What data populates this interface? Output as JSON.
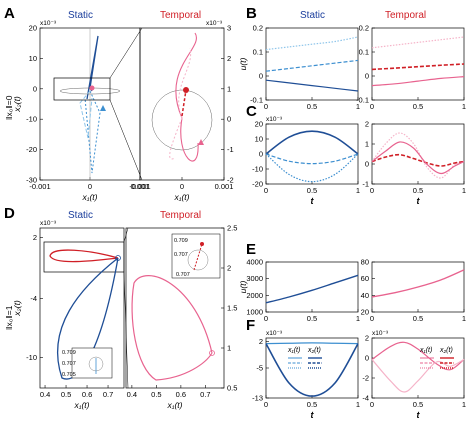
{
  "figure": {
    "panel_letters": [
      "A",
      "B",
      "C",
      "D",
      "E",
      "F"
    ],
    "static_label": "Static",
    "temporal_label": "Temporal",
    "row_label_top": "‖x₀‖=0",
    "row_label_bottom": "‖x₀‖=1",
    "exp_label": "x10⁻³"
  },
  "colors": {
    "static_dark": "#1f4e96",
    "static_light": "#3d8fd0",
    "static_pale": "#8ec5ea",
    "temporal_dark": "#d01f26",
    "temporal_pink": "#e8638f",
    "temporal_pale": "#f5b3c8",
    "title_blue": "#1a3d9c",
    "title_red": "#d01f26"
  },
  "chart_data": [
    {
      "id": "A-static",
      "type": "line",
      "xlabel": "x₁(t)",
      "ylabel": "x₂(t)",
      "x_ticks": [
        "-0.001",
        "0",
        "0.001"
      ],
      "y_ticks": [
        "20",
        "10",
        "0",
        "-10",
        "-20",
        "-30"
      ],
      "xlim": [
        -0.0015,
        0.0015
      ],
      "ylim": [
        -30,
        20
      ],
      "y_exponent": "x10⁻³"
    },
    {
      "id": "A-temporal",
      "type": "line",
      "xlabel": "x₁(t)",
      "ylabel": "",
      "x_ticks": [
        "-0.001",
        "0",
        "0.001"
      ],
      "y_ticks": [
        "3",
        "2",
        "1",
        "0",
        "-1",
        "-2"
      ],
      "xlim": [
        -0.0015,
        0.0015
      ],
      "ylim": [
        -2.4,
        3.4
      ],
      "y_exponent": "x10⁻³"
    },
    {
      "id": "B-static",
      "type": "line",
      "ylabel": "u(t)",
      "x_ticks": [
        "0",
        "0.5",
        "1"
      ],
      "y_ticks": [
        "0.2",
        "0.1",
        "0",
        "-0.1"
      ],
      "xlim": [
        0,
        1
      ],
      "ylim": [
        -0.15,
        0.25
      ],
      "series": [
        {
          "name": "pale dotted",
          "x": [
            0,
            0.25,
            0.5,
            0.75,
            1
          ],
          "values": [
            0.13,
            0.145,
            0.16,
            0.175,
            0.2
          ]
        },
        {
          "name": "light dashed",
          "x": [
            0,
            0.25,
            0.5,
            0.75,
            1
          ],
          "values": [
            0.01,
            0.025,
            0.04,
            0.055,
            0.07
          ]
        },
        {
          "name": "dark solid",
          "x": [
            0,
            0.25,
            0.5,
            0.75,
            1
          ],
          "values": [
            -0.04,
            -0.055,
            -0.07,
            -0.085,
            -0.1
          ]
        }
      ]
    },
    {
      "id": "B-temporal",
      "type": "line",
      "x_ticks": [
        "0",
        "0.5",
        "1"
      ],
      "y_ticks": [
        "0.2",
        "0.1",
        "0",
        "-0.1"
      ],
      "xlim": [
        0,
        1
      ],
      "ylim": [
        -0.15,
        0.25
      ],
      "series": [
        {
          "name": "pale dotted",
          "x": [
            0,
            0.25,
            0.5,
            0.75,
            1
          ],
          "values": [
            0.14,
            0.155,
            0.17,
            0.185,
            0.2
          ]
        },
        {
          "name": "red dashed",
          "x": [
            0,
            0.25,
            0.5,
            0.75,
            1
          ],
          "values": [
            0.02,
            0.027,
            0.035,
            0.043,
            0.05
          ]
        },
        {
          "name": "pink solid",
          "x": [
            0,
            0.25,
            0.5,
            0.75,
            1
          ],
          "values": [
            -0.07,
            -0.06,
            -0.045,
            -0.03,
            -0.02
          ]
        }
      ]
    },
    {
      "id": "C-static",
      "type": "line",
      "xlabel": "t",
      "x_ticks": [
        "0",
        "0.5",
        "1"
      ],
      "y_ticks": [
        "20",
        "10",
        "0",
        "-10",
        "-20"
      ],
      "xlim": [
        0,
        1
      ],
      "ylim": [
        -25,
        25
      ],
      "y_exponent": "x10⁻³",
      "series": [
        {
          "name": "dark solid",
          "x": [
            0,
            0.25,
            0.5,
            0.75,
            1
          ],
          "values": [
            0,
            14,
            19,
            14,
            0
          ]
        },
        {
          "name": "light dashed",
          "x": [
            0,
            0.25,
            0.5,
            0.75,
            1
          ],
          "values": [
            0,
            -6,
            -8,
            -6,
            0
          ]
        },
        {
          "name": "pale dotted",
          "x": [
            0,
            0.25,
            0.5,
            0.75,
            1
          ],
          "values": [
            0,
            -17,
            -23,
            -17,
            0
          ]
        }
      ]
    },
    {
      "id": "C-temporal",
      "type": "line",
      "xlabel": "t",
      "x_ticks": [
        "0",
        "0.5",
        "1"
      ],
      "y_ticks": [
        "2",
        "1",
        "0",
        "-1"
      ],
      "xlim": [
        0,
        1
      ],
      "ylim": [
        -1.5,
        2.5
      ],
      "series": [
        {
          "name": "pale dotted",
          "x": [
            0,
            0.15,
            0.3,
            0.45,
            0.6,
            0.75,
            0.9,
            1
          ],
          "values": [
            0,
            1.2,
            1.9,
            1.2,
            -0.4,
            -1.1,
            -0.2,
            0
          ]
        },
        {
          "name": "red dashed",
          "x": [
            0,
            0.15,
            0.3,
            0.45,
            0.6,
            0.75,
            0.9,
            1
          ],
          "values": [
            0,
            0.3,
            0.45,
            0.2,
            -0.1,
            -0.3,
            -0.1,
            0
          ]
        },
        {
          "name": "pink solid",
          "x": [
            0,
            0.15,
            0.3,
            0.45,
            0.6,
            0.75,
            0.9,
            1
          ],
          "values": [
            0,
            0.7,
            1.3,
            0.9,
            -0.2,
            -0.8,
            -0.3,
            0
          ]
        }
      ]
    },
    {
      "id": "D-static",
      "type": "line",
      "xlabel": "x₁(t)",
      "ylabel": "x₂(t)",
      "x_ticks": [
        "0.4",
        "0.5",
        "0.6",
        "0.7"
      ],
      "y_ticks": [
        "2",
        "-4",
        "-10"
      ],
      "xlim": [
        0.35,
        0.75
      ],
      "ylim": [
        -13,
        3
      ],
      "y_exponent": "x10⁻³",
      "inset_ticks": [
        "0.709",
        "0.707",
        "0.705",
        "0.707",
        "0.709"
      ]
    },
    {
      "id": "D-temporal",
      "type": "line",
      "xlabel": "x₁(t)",
      "x_ticks": [
        "0.4",
        "0.5",
        "0.6",
        "0.7"
      ],
      "y_ticks": [
        "2.5",
        "2",
        "1.5",
        "1",
        "0.5"
      ],
      "xlim": [
        0.35,
        0.75
      ],
      "ylim": [
        0.3,
        2.6
      ],
      "inset_ticks": [
        "0.709",
        "0.707",
        "0.705",
        "0.707",
        "0.709"
      ]
    },
    {
      "id": "E-static",
      "type": "line",
      "ylabel": "u(t)",
      "x_ticks": [
        "0",
        "0.5",
        "1"
      ],
      "y_ticks": [
        "4000",
        "3000",
        "2000",
        "1000"
      ],
      "xlim": [
        0,
        1
      ],
      "ylim": [
        1000,
        4000
      ],
      "series": [
        {
          "name": "u(t)",
          "x": [
            0,
            0.25,
            0.5,
            0.75,
            1
          ],
          "values": [
            1550,
            1900,
            2300,
            2750,
            3200
          ]
        }
      ]
    },
    {
      "id": "E-temporal",
      "type": "line",
      "x_ticks": [
        "0",
        "0.5",
        "1"
      ],
      "y_ticks": [
        "80",
        "60",
        "40",
        "20"
      ],
      "xlim": [
        0,
        1
      ],
      "ylim": [
        15,
        85
      ],
      "series": [
        {
          "name": "u(t)",
          "x": [
            0,
            0.25,
            0.5,
            0.75,
            1
          ],
          "values": [
            36,
            42,
            50,
            60,
            74
          ]
        }
      ]
    },
    {
      "id": "F-static",
      "type": "line",
      "xlabel": "t",
      "x_ticks": [
        "0",
        "0.5",
        "1"
      ],
      "y_ticks": [
        "2",
        "-5",
        "-13"
      ],
      "xlim": [
        0,
        1
      ],
      "ylim": [
        -13,
        3
      ],
      "y_exponent": "x10⁻³",
      "legend": [
        "x₁(t)",
        "x₂(t)"
      ],
      "series": [
        {
          "name": "x₁(t)",
          "x": [
            0,
            0.25,
            0.5,
            0.75,
            1
          ],
          "values": [
            1.5,
            1.6,
            1.7,
            1.6,
            1.5
          ]
        },
        {
          "name": "x₂(t)",
          "x": [
            0,
            0.25,
            0.5,
            0.75,
            1
          ],
          "values": [
            1.5,
            -9,
            -12.5,
            -9,
            1.5
          ]
        }
      ]
    },
    {
      "id": "F-temporal",
      "type": "line",
      "xlabel": "t",
      "x_ticks": [
        "0",
        "0.5",
        "1"
      ],
      "y_ticks": [
        "2",
        "0",
        "-2",
        "-4"
      ],
      "xlim": [
        0,
        1
      ],
      "ylim": [
        -4.5,
        2.5
      ],
      "y_exponent": "x10⁻³",
      "legend": [
        "x₁(t)",
        "x₂(t)"
      ],
      "series": [
        {
          "name": "x₁(t)",
          "x": [
            0,
            0.2,
            0.35,
            0.5,
            0.7,
            0.85,
            1
          ],
          "values": [
            0,
            1.5,
            2.0,
            1.2,
            -0.5,
            -1.2,
            0
          ]
        },
        {
          "name": "x₂(t)",
          "x": [
            0,
            0.2,
            0.35,
            0.5,
            0.7,
            0.85,
            1
          ],
          "values": [
            0,
            -2.5,
            -3.8,
            -2.5,
            -0.3,
            -0.8,
            0
          ]
        }
      ]
    }
  ]
}
